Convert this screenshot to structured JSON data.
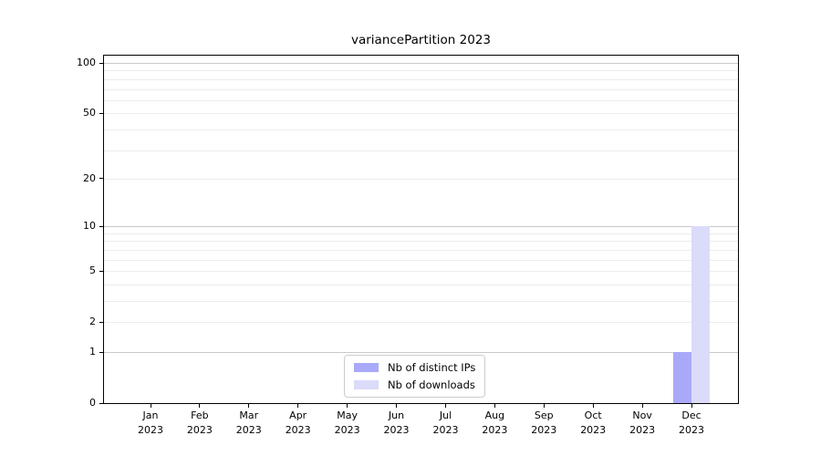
{
  "chart_data": {
    "type": "bar",
    "title": "variancePartition 2023",
    "x_year": "2023",
    "categories": [
      "Jan",
      "Feb",
      "Mar",
      "Apr",
      "May",
      "Jun",
      "Jul",
      "Aug",
      "Sep",
      "Oct",
      "Nov",
      "Dec"
    ],
    "series": [
      {
        "name": "Nb of distinct IPs",
        "color": "#a9a9fa",
        "values": [
          0,
          0,
          0,
          0,
          0,
          0,
          0,
          0,
          0,
          0,
          0,
          1
        ]
      },
      {
        "name": "Nb of downloads",
        "color": "#dbdbfa",
        "values": [
          0,
          0,
          0,
          0,
          0,
          0,
          0,
          0,
          0,
          0,
          0,
          10
        ]
      }
    ],
    "scale": "log1p",
    "ylim": [
      0,
      100
    ],
    "y_ticks": [
      0,
      1,
      2,
      5,
      10,
      20,
      50,
      100
    ],
    "y_major_gridlines": [
      1,
      10,
      100
    ],
    "y_minor_gridlines": [
      2,
      3,
      4,
      5,
      6,
      7,
      8,
      9,
      20,
      30,
      40,
      50,
      60,
      70,
      80,
      90
    ],
    "grid": true,
    "legend_position": "bottom-center",
    "colors": {
      "major_grid": "#c9c9c9",
      "minor_grid": "#ececec",
      "spine": "#000000",
      "text": "#000000",
      "background": "#ffffff"
    }
  }
}
